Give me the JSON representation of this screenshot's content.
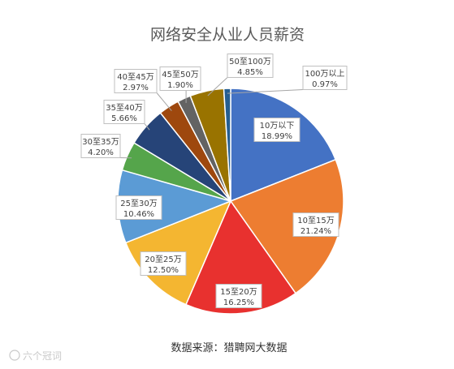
{
  "chart_data": {
    "type": "pie",
    "title": "网络安全从业人员薪资",
    "slices": [
      {
        "label": "10万以下",
        "value": 18.99,
        "value_label": "18.99%",
        "color": "#4472c4"
      },
      {
        "label": "10至15万",
        "value": 21.24,
        "value_label": "21.24%",
        "color": "#ed7d31"
      },
      {
        "label": "15至20万",
        "value": 16.25,
        "value_label": "16.25%",
        "color": "#e8312f"
      },
      {
        "label": "20至25万",
        "value": 12.5,
        "value_label": "12.50%",
        "color": "#f4b631"
      },
      {
        "label": "25至30万",
        "value": 10.46,
        "value_label": "10.46%",
        "color": "#5b9bd5"
      },
      {
        "label": "30至35万",
        "value": 4.2,
        "value_label": "4.20%",
        "color": "#55a54b"
      },
      {
        "label": "35至40万",
        "value": 5.66,
        "value_label": "5.66%",
        "color": "#264478"
      },
      {
        "label": "40至45万",
        "value": 2.97,
        "value_label": "2.97%",
        "color": "#9e480e"
      },
      {
        "label": "45至50万",
        "value": 1.9,
        "value_label": "1.90%",
        "color": "#636363"
      },
      {
        "label": "50至100万",
        "value": 4.85,
        "value_label": "4.85%",
        "color": "#997300"
      },
      {
        "label": "100万以上",
        "value": 0.97,
        "value_label": "0.97%",
        "color": "#255e91"
      }
    ]
  },
  "source": "数据来源：猎聘网大数据",
  "watermark": "六个冠词"
}
